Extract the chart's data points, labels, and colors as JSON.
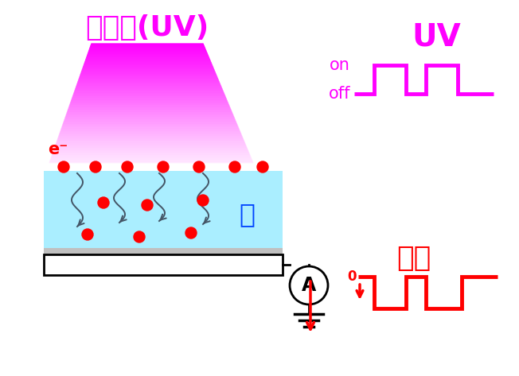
{
  "bg_color": "#ffffff",
  "uv_label": "紫外线(UV)",
  "uv_label_color": "#ff00ff",
  "uv_label_fontsize": 26,
  "ice_label": "冰",
  "ice_label_color": "#0044ff",
  "ice_label_fontsize": 24,
  "e_label": "e⁻",
  "e_label_color": "#ff0000",
  "e_label_fontsize": 15,
  "current_label": "电流",
  "current_label_color": "#ff0000",
  "current_label_fontsize": 26,
  "uv_signal_label": "UV",
  "uv_signal_color": "#ff00ff",
  "uv_signal_fontsize": 28,
  "on_label": "on",
  "off_label": "off",
  "on_off_fontsize": 15,
  "ice_block_color": "#aaeeff",
  "red_dot_color": "#ff0000",
  "arrow_color": "#445566",
  "sw_linewidth": 3.5,
  "fig_w": 6.52,
  "fig_h": 4.73,
  "dpi": 100
}
